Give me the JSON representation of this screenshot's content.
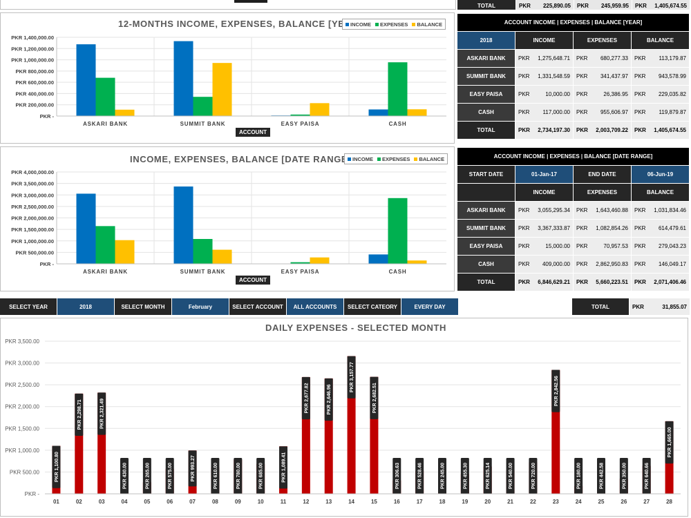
{
  "top_total": {
    "label": "TOTAL",
    "cells": [
      {
        "cur": "PKR",
        "val": "225,890.05"
      },
      {
        "cur": "PKR",
        "val": "245,959.95"
      },
      {
        "cur": "PKR",
        "val": "1,405,674.55"
      }
    ]
  },
  "chart1": {
    "title": "12-MONTHS INCOME, EXPENSES, BALANCE [YEAR]",
    "legend": [
      "INCOME",
      "EXPENSES",
      "BALANCE"
    ],
    "axis_label": "ACCOUNT",
    "yticks": [
      "PKR 1,400,000.00",
      "PKR 1,200,000.00",
      "PKR 1,000,000.00",
      "PKR 800,000.00",
      "PKR 600,000.00",
      "PKR 400,000.00",
      "PKR 200,000.00",
      "PKR -"
    ]
  },
  "chart2": {
    "title": "INCOME, EXPENSES, BALANCE [DATE RANGE]",
    "legend": [
      "INCOME",
      "EXPENSES",
      "BALANCE"
    ],
    "axis_label": "ACCOUNT",
    "yticks": [
      "PKR 4,000,000.00",
      "PKR 3,500,000.00",
      "PKR 3,000,000.00",
      "PKR 2,500,000.00",
      "PKR 2,000,000.00",
      "PKR 1,500,000.00",
      "PKR 1,000,000.00",
      "PKR 500,000.00",
      "PKR -"
    ]
  },
  "chart3": {
    "title": "DAILY EXPENSES - SELECTED MONTH",
    "yticks": [
      "PKR 3,500.00",
      "PKR 3,000.00",
      "PKR 2,500.00",
      "PKR 2,000.00",
      "PKR 1,500.00",
      "PKR 1,000.00",
      "PKR 500.00",
      "PKR -"
    ],
    "labels": [
      "PKR 1,100.80",
      "PKR 2,298.71",
      "PKR 2,321.49",
      "PKR 430.00",
      "PKR 265.00",
      "PKR 575.00",
      "PKR 993.27",
      "PKR 610.00",
      "PKR 780.00",
      "PKR 685.00",
      "PKR 1,089.41",
      "PKR 2,677.82",
      "PKR 2,646.96",
      "PKR 3,157.77",
      "PKR 2,682.51",
      "PKR 306.63",
      "PKR 528.46",
      "PKR 245.00",
      "PKR 455.30",
      "PKR 625.14",
      "PKR 540.00",
      "PKR 720.00",
      "PKR 2,842.56",
      "PKR 180.00",
      "PKR 442.58",
      "PKR 350.00",
      "PKR 640.66",
      "PKR 1,665.00"
    ]
  },
  "chart_data": [
    {
      "type": "bar",
      "title": "12-MONTHS INCOME, EXPENSES, BALANCE [YEAR]",
      "xlabel": "ACCOUNT",
      "categories": [
        "ASKARI BANK",
        "SUMMIT BANK",
        "EASY PAISA",
        "CASH"
      ],
      "series": [
        {
          "name": "INCOME",
          "color": "#0070c0",
          "values": [
            1275648.71,
            1331548.59,
            10000.0,
            117000.0
          ]
        },
        {
          "name": "EXPENSES",
          "color": "#00b050",
          "values": [
            680277.33,
            341437.97,
            26386.95,
            955606.97
          ]
        },
        {
          "name": "BALANCE",
          "color": "#ffc000",
          "values": [
            113179.87,
            943578.99,
            229035.82,
            119879.87
          ]
        }
      ],
      "ylim": [
        0,
        1400000
      ],
      "grid": true,
      "legend": "top-right"
    },
    {
      "type": "bar",
      "title": "INCOME, EXPENSES, BALANCE [DATE RANGE]",
      "xlabel": "ACCOUNT",
      "categories": [
        "ASKARI BANK",
        "SUMMIT BANK",
        "EASY PAISA",
        "CASH"
      ],
      "series": [
        {
          "name": "INCOME",
          "color": "#0070c0",
          "values": [
            3055295.34,
            3367333.87,
            15000.0,
            409000.0
          ]
        },
        {
          "name": "EXPENSES",
          "color": "#00b050",
          "values": [
            1643460.88,
            1082854.26,
            70957.53,
            2862950.83
          ]
        },
        {
          "name": "BALANCE",
          "color": "#ffc000",
          "values": [
            1031834.46,
            614479.61,
            279043.23,
            146049.17
          ]
        }
      ],
      "ylim": [
        0,
        4000000
      ],
      "grid": true,
      "legend": "top-right"
    },
    {
      "type": "bar",
      "title": "DAILY EXPENSES - SELECTED MONTH",
      "categories": [
        "01",
        "02",
        "03",
        "04",
        "05",
        "06",
        "07",
        "08",
        "09",
        "10",
        "11",
        "12",
        "13",
        "14",
        "15",
        "16",
        "17",
        "18",
        "19",
        "20",
        "21",
        "22",
        "23",
        "24",
        "25",
        "26",
        "27",
        "28"
      ],
      "series": [
        {
          "color": "#c00000",
          "values": [
            1100.8,
            2298.71,
            2321.49,
            430.0,
            265.0,
            575.0,
            993.27,
            610.0,
            780.0,
            685.0,
            1089.41,
            2677.82,
            2646.96,
            3157.77,
            2682.51,
            306.63,
            528.46,
            245.0,
            455.3,
            625.14,
            540.0,
            720.0,
            2842.56,
            180.0,
            442.58,
            350.0,
            640.66,
            1665.0
          ]
        }
      ],
      "ylim": [
        0,
        3500
      ],
      "grid": true
    }
  ],
  "table_year": {
    "title": "ACCOUNT INCOME | EXPENSES | BALANCE [YEAR]",
    "year": "2018",
    "headers": [
      "INCOME",
      "EXPENSES",
      "BALANCE"
    ],
    "cur": "PKR",
    "rows": [
      {
        "name": "ASKARI BANK",
        "vals": [
          "1,275,648.71",
          "680,277.33",
          "113,179.87"
        ]
      },
      {
        "name": "SUMMIT BANK",
        "vals": [
          "1,331,548.59",
          "341,437.97",
          "943,578.99"
        ]
      },
      {
        "name": "EASY PAISA",
        "vals": [
          "10,000.00",
          "26,386.95",
          "229,035.82"
        ]
      },
      {
        "name": "CASH",
        "vals": [
          "117,000.00",
          "955,606.97",
          "119,879.87"
        ]
      }
    ],
    "total": {
      "label": "TOTAL",
      "vals": [
        "2,734,197.30",
        "2,003,709.22",
        "1,405,674.55"
      ]
    }
  },
  "table_range": {
    "title": "ACCOUNT INCOME | EXPENSES | BALANCE [DATE RANGE]",
    "start_label": "START DATE",
    "start": "01-Jan-17",
    "end_label": "END DATE",
    "end": "06-Jun-19",
    "headers": [
      "INCOME",
      "EXPENSES",
      "BALANCE"
    ],
    "cur": "PKR",
    "rows": [
      {
        "name": "ASKARI BANK",
        "vals": [
          "3,055,295.34",
          "1,643,460.88",
          "1,031,834.46"
        ]
      },
      {
        "name": "SUMMIT BANK",
        "vals": [
          "3,367,333.87",
          "1,082,854.26",
          "614,479.61"
        ]
      },
      {
        "name": "EASY PAISA",
        "vals": [
          "15,000.00",
          "70,957.53",
          "279,043.23"
        ]
      },
      {
        "name": "CASH",
        "vals": [
          "409,000.00",
          "2,862,950.83",
          "146,049.17"
        ]
      }
    ],
    "total": {
      "label": "TOTAL",
      "vals": [
        "6,846,629.21",
        "5,660,223.51",
        "2,071,406.46"
      ]
    }
  },
  "filters": {
    "select_year_label": "SELECT YEAR",
    "year": "2018",
    "select_month_label": "SELECT MONTH",
    "month": "February",
    "select_account_label": "SELECT ACCOUNT",
    "account": "ALL ACCOUNTS",
    "select_category_label": "SELECT CATEORY",
    "category": "EVERY DAY",
    "total_label": "TOTAL",
    "total_cur": "PKR",
    "total_value": "31,855.07"
  }
}
